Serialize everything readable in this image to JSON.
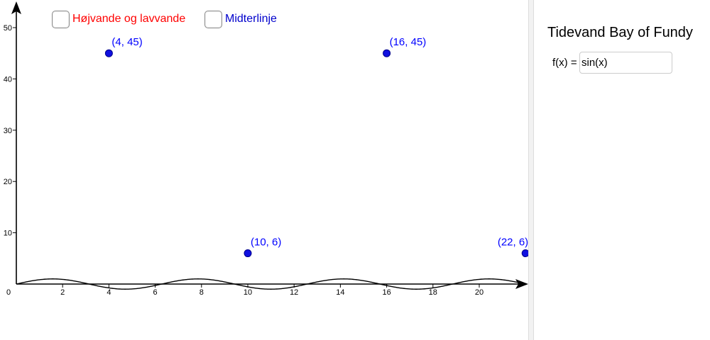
{
  "colors": {
    "point_fill": "#1010e0",
    "point_stroke": "#00008b",
    "label_color": "#0000ff",
    "checkbox1_label": "#ff0000",
    "checkbox2_label": "#0000cc",
    "curve": "#000000"
  },
  "checkboxes": [
    {
      "label": "Højvande og lavvande",
      "checked": false
    },
    {
      "label": "Midterlinje",
      "checked": false
    }
  ],
  "panel": {
    "title": "Tidevand Bay of Fundy",
    "fx_label": "f(x) =",
    "fx_value": "sin(x)"
  },
  "chart_data": {
    "type": "scatter",
    "xlim": [
      0,
      22
    ],
    "ylim": [
      0,
      50
    ],
    "x_ticks": [
      "0",
      "2",
      "4",
      "6",
      "8",
      "10",
      "12",
      "14",
      "16",
      "18",
      "20"
    ],
    "y_ticks": [
      "10",
      "20",
      "30",
      "40",
      "50"
    ],
    "points": [
      {
        "x": 4,
        "y": 45,
        "label": "(4, 45)"
      },
      {
        "x": 16,
        "y": 45,
        "label": "(16, 45)"
      },
      {
        "x": 10,
        "y": 6,
        "label": "(10, 6)"
      },
      {
        "x": 22,
        "y": 6,
        "label": "(22, 6)"
      }
    ],
    "function": "sin(x)"
  }
}
